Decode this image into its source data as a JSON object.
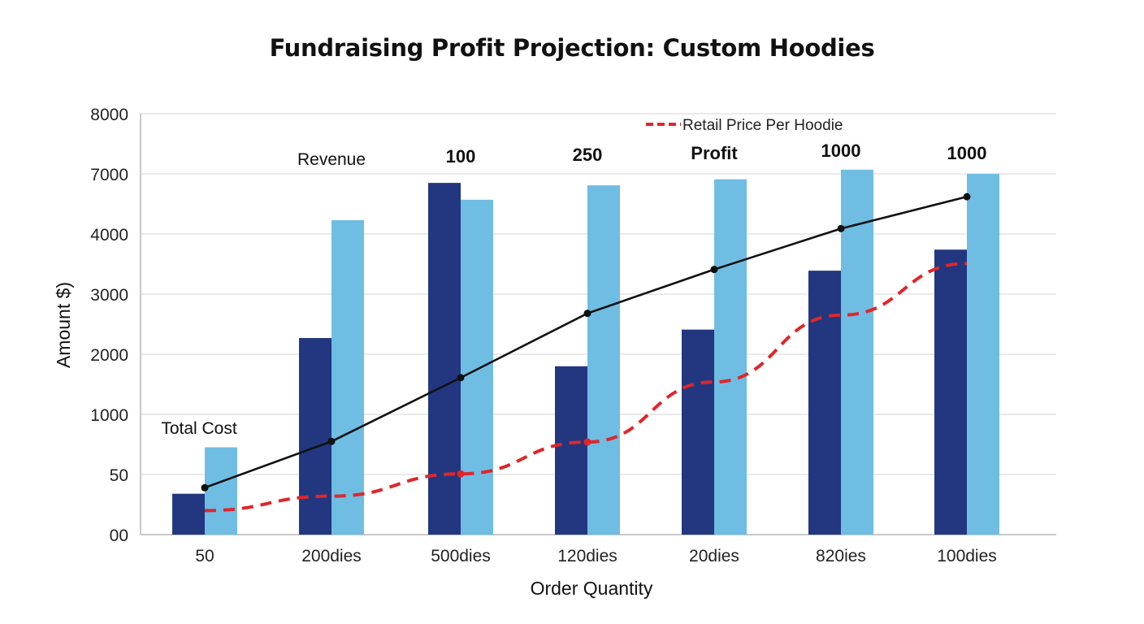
{
  "chart_data": {
    "type": "bar",
    "title": "Fundraising Profit Projection: Custom Hoodies",
    "xlabel": "Order Quantity",
    "ylabel": "Amount  $)",
    "y_ticks": [
      "00",
      "50",
      "1000",
      "2000",
      "3000",
      "4000",
      "7000",
      "8000"
    ],
    "y_tick_values": [
      0,
      50,
      1000,
      2000,
      3000,
      4000,
      7000,
      8000
    ],
    "ylim": [
      0,
      8000
    ],
    "grid": true,
    "categories": [
      "50",
      "200dies",
      "500dies",
      "120dies",
      "20dies",
      "820ies",
      "100dies"
    ],
    "series": [
      {
        "type": "bar",
        "color": "#22377f",
        "values": [
          34,
          2270,
          6550,
          1800,
          2410,
          3390,
          3740
        ]
      },
      {
        "type": "bar",
        "color": "#6fbde3",
        "values": [
          480,
          4690,
          5710,
          6430,
          6730,
          7070,
          7000
        ]
      },
      {
        "type": "line",
        "color": "#111111",
        "style": "solid",
        "markers": true,
        "values": [
          39,
          573,
          1610,
          2680,
          3410,
          4270,
          5860
        ]
      },
      {
        "type": "line",
        "color": "#e0262b",
        "style": "dashed",
        "name": "Retail Price Per Hoodie",
        "values": [
          20,
          32,
          60,
          563,
          1540,
          2650,
          3510
        ]
      }
    ],
    "annotations": [
      {
        "text": "Total Cost",
        "category": "50",
        "bold": false
      },
      {
        "text": "Revenue",
        "category": "200dies",
        "bold": false
      },
      {
        "text": "100",
        "category": "500dies",
        "bold": true
      },
      {
        "text": "250",
        "category": "120dies",
        "bold": true
      },
      {
        "text": "Profit",
        "category": "20dies",
        "bold": true
      },
      {
        "text": "1000",
        "category": "820ies",
        "bold": true
      },
      {
        "text": "1000",
        "category": "100dies",
        "bold": true
      }
    ],
    "legend": {
      "position": "top-right",
      "entries": [
        "Retail Price Per Hoodie"
      ]
    }
  }
}
